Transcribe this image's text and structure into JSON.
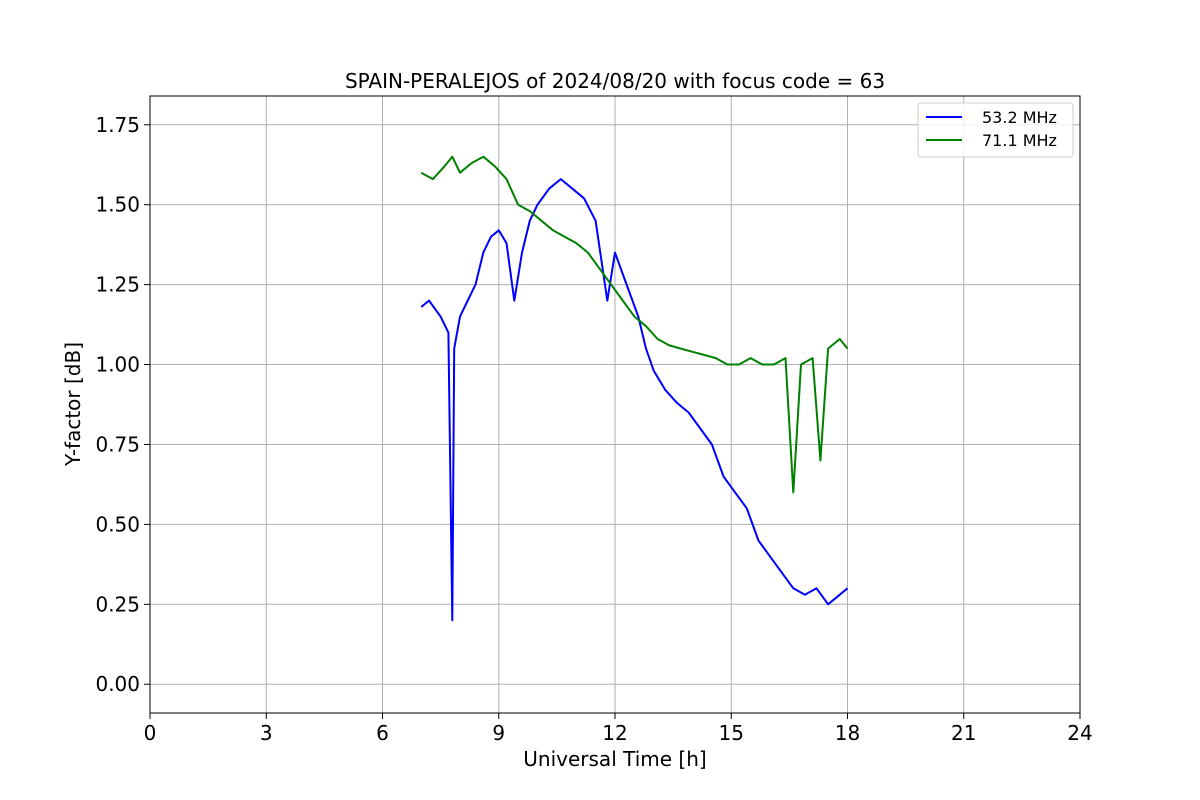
{
  "chart_data": {
    "type": "line",
    "title": "SPAIN-PERALEJOS of 2024/08/20 with focus code = 63",
    "xlabel": "Universal Time [h]",
    "ylabel": "Y-factor [dB]",
    "xlim": [
      0,
      24
    ],
    "ylim": [
      -0.09,
      1.84
    ],
    "xticks": [
      0,
      3,
      6,
      9,
      12,
      15,
      18,
      21,
      24
    ],
    "xtick_labels": [
      "0",
      "3",
      "6",
      "9",
      "12",
      "15",
      "18",
      "21",
      "24"
    ],
    "yticks": [
      0.0,
      0.25,
      0.5,
      0.75,
      1.0,
      1.25,
      1.5,
      1.75
    ],
    "ytick_labels": [
      "0.00",
      "0.25",
      "0.50",
      "0.75",
      "1.00",
      "1.25",
      "1.50",
      "1.75"
    ],
    "grid": true,
    "legend_position": "top-right",
    "series": [
      {
        "name": "53.2 MHz",
        "legend_label": "53.2 MHz",
        "color": "#0000ff",
        "x": [
          7.0,
          7.2,
          7.5,
          7.7,
          7.8,
          7.85,
          8.0,
          8.2,
          8.4,
          8.6,
          8.8,
          9.0,
          9.2,
          9.4,
          9.6,
          9.8,
          10.0,
          10.3,
          10.6,
          10.9,
          11.2,
          11.5,
          11.8,
          12.0,
          12.3,
          12.6,
          12.8,
          13.0,
          13.3,
          13.6,
          13.9,
          14.2,
          14.5,
          14.8,
          15.1,
          15.4,
          15.7,
          16.0,
          16.3,
          16.6,
          16.9,
          17.2,
          17.5,
          17.8,
          18.0
        ],
        "y": [
          1.18,
          1.2,
          1.15,
          1.1,
          0.2,
          1.05,
          1.15,
          1.2,
          1.25,
          1.35,
          1.4,
          1.42,
          1.38,
          1.2,
          1.35,
          1.45,
          1.5,
          1.55,
          1.58,
          1.55,
          1.52,
          1.45,
          1.2,
          1.35,
          1.25,
          1.15,
          1.05,
          0.98,
          0.92,
          0.88,
          0.85,
          0.8,
          0.75,
          0.65,
          0.6,
          0.55,
          0.45,
          0.4,
          0.35,
          0.3,
          0.28,
          0.3,
          0.25,
          0.28,
          0.3
        ]
      },
      {
        "name": "71.1 MHz",
        "legend_label": "71.1 MHz",
        "color": "#008000",
        "x": [
          7.0,
          7.3,
          7.6,
          7.8,
          8.0,
          8.3,
          8.6,
          8.9,
          9.2,
          9.5,
          9.8,
          10.1,
          10.4,
          10.7,
          11.0,
          11.3,
          11.6,
          11.9,
          12.2,
          12.5,
          12.8,
          13.1,
          13.4,
          13.7,
          14.0,
          14.3,
          14.6,
          14.9,
          15.2,
          15.5,
          15.8,
          16.1,
          16.4,
          16.6,
          16.8,
          17.1,
          17.3,
          17.5,
          17.8,
          18.0
        ],
        "y": [
          1.6,
          1.58,
          1.62,
          1.65,
          1.6,
          1.63,
          1.65,
          1.62,
          1.58,
          1.5,
          1.48,
          1.45,
          1.42,
          1.4,
          1.38,
          1.35,
          1.3,
          1.25,
          1.2,
          1.15,
          1.12,
          1.08,
          1.06,
          1.05,
          1.04,
          1.03,
          1.02,
          1.0,
          1.0,
          1.02,
          1.0,
          1.0,
          1.02,
          0.6,
          1.0,
          1.02,
          0.7,
          1.05,
          1.08,
          1.05
        ]
      }
    ]
  }
}
